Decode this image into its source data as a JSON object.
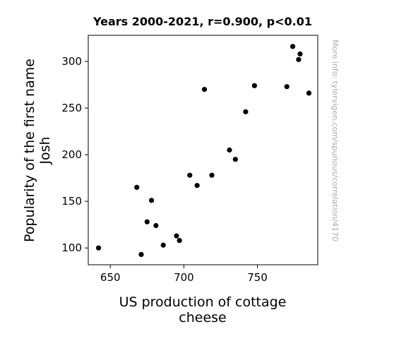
{
  "chart_data": {
    "type": "scatter",
    "title": "Years 2000-2021, r=0.900, p<0.01",
    "xlabel": [
      "US production of cottage",
      "cheese"
    ],
    "ylabel": [
      "Popularity of the first name",
      "Josh"
    ],
    "side_note": "More info: tylervigen.com/spurious/correlation/4170",
    "xlim": [
      635,
      791
    ],
    "ylim": [
      82,
      328
    ],
    "xticks": [
      650,
      700,
      750
    ],
    "yticks": [
      100,
      150,
      200,
      250,
      300
    ],
    "grid": false,
    "marker_color": "#000000",
    "points": [
      {
        "x": 642,
        "y": 100
      },
      {
        "x": 668,
        "y": 165
      },
      {
        "x": 671,
        "y": 93
      },
      {
        "x": 675,
        "y": 128
      },
      {
        "x": 678,
        "y": 151
      },
      {
        "x": 681,
        "y": 124
      },
      {
        "x": 686,
        "y": 103
      },
      {
        "x": 695,
        "y": 113
      },
      {
        "x": 697,
        "y": 108
      },
      {
        "x": 704,
        "y": 178
      },
      {
        "x": 709,
        "y": 167
      },
      {
        "x": 714,
        "y": 270
      },
      {
        "x": 719,
        "y": 178
      },
      {
        "x": 731,
        "y": 205
      },
      {
        "x": 735,
        "y": 195
      },
      {
        "x": 742,
        "y": 246
      },
      {
        "x": 748,
        "y": 274
      },
      {
        "x": 770,
        "y": 273
      },
      {
        "x": 774,
        "y": 316
      },
      {
        "x": 778,
        "y": 302
      },
      {
        "x": 779,
        "y": 308
      },
      {
        "x": 785,
        "y": 266
      }
    ]
  }
}
